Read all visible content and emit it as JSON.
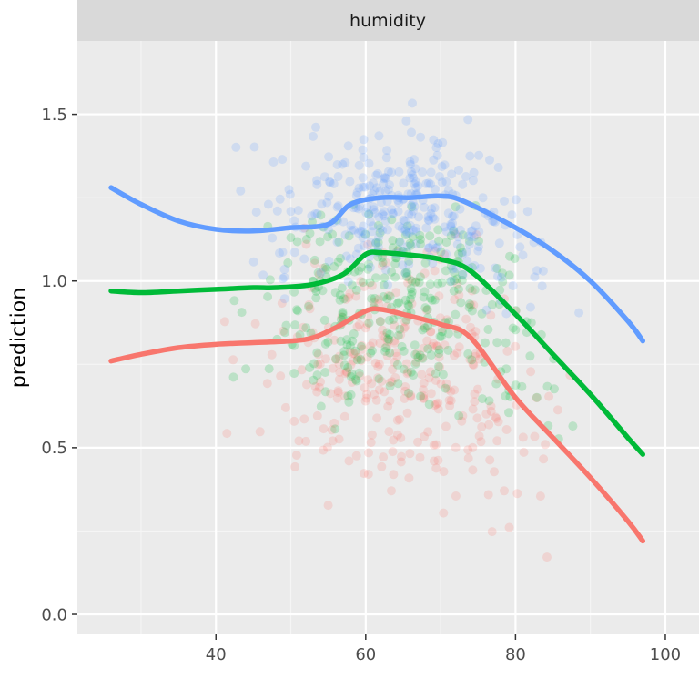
{
  "chart_data": {
    "type": "scatter",
    "facet_label": "humidity",
    "xlabel": "",
    "ylabel": "prediction",
    "xlim": [
      21.5,
      104.5
    ],
    "ylim": [
      -0.06,
      1.72
    ],
    "x_ticks": [
      40,
      60,
      80,
      100
    ],
    "y_ticks": [
      0.0,
      0.5,
      1.0,
      1.5
    ],
    "x_tick_labels": [
      "40",
      "60",
      "80",
      "100"
    ],
    "y_tick_labels": [
      "0.0",
      "0.5",
      "1.0",
      "1.5"
    ],
    "grid": true,
    "legend": "none",
    "series": [
      {
        "color": "#F8766D",
        "smooth_x": [
          26,
          30,
          35,
          40,
          45,
          50,
          53,
          56,
          60,
          62,
          65,
          70,
          74,
          80,
          85,
          90,
          95,
          97
        ],
        "smooth_y": [
          0.76,
          0.78,
          0.8,
          0.81,
          0.815,
          0.82,
          0.83,
          0.86,
          0.91,
          0.915,
          0.9,
          0.87,
          0.83,
          0.65,
          0.53,
          0.41,
          0.28,
          0.22
        ],
        "scatter_center": 0.72,
        "scatter_spread": 0.35
      },
      {
        "color": "#00BA38",
        "smooth_x": [
          26,
          30,
          35,
          40,
          45,
          48,
          53,
          57,
          60,
          62,
          65,
          70,
          74,
          80,
          85,
          90,
          95,
          97
        ],
        "smooth_y": [
          0.97,
          0.965,
          0.97,
          0.975,
          0.98,
          0.98,
          0.99,
          1.02,
          1.08,
          1.085,
          1.08,
          1.065,
          1.03,
          0.9,
          0.78,
          0.66,
          0.53,
          0.48
        ],
        "scatter_center": 0.92,
        "scatter_spread": 0.32
      },
      {
        "color": "#619CFF",
        "smooth_x": [
          26,
          30,
          35,
          40,
          45,
          50,
          55,
          58,
          62,
          66,
          70,
          73,
          80,
          85,
          90,
          95,
          97
        ],
        "smooth_y": [
          1.28,
          1.23,
          1.18,
          1.155,
          1.15,
          1.16,
          1.17,
          1.23,
          1.25,
          1.25,
          1.255,
          1.24,
          1.16,
          1.09,
          1.0,
          0.88,
          0.82
        ],
        "scatter_center": 1.22,
        "scatter_spread": 0.22
      }
    ]
  }
}
